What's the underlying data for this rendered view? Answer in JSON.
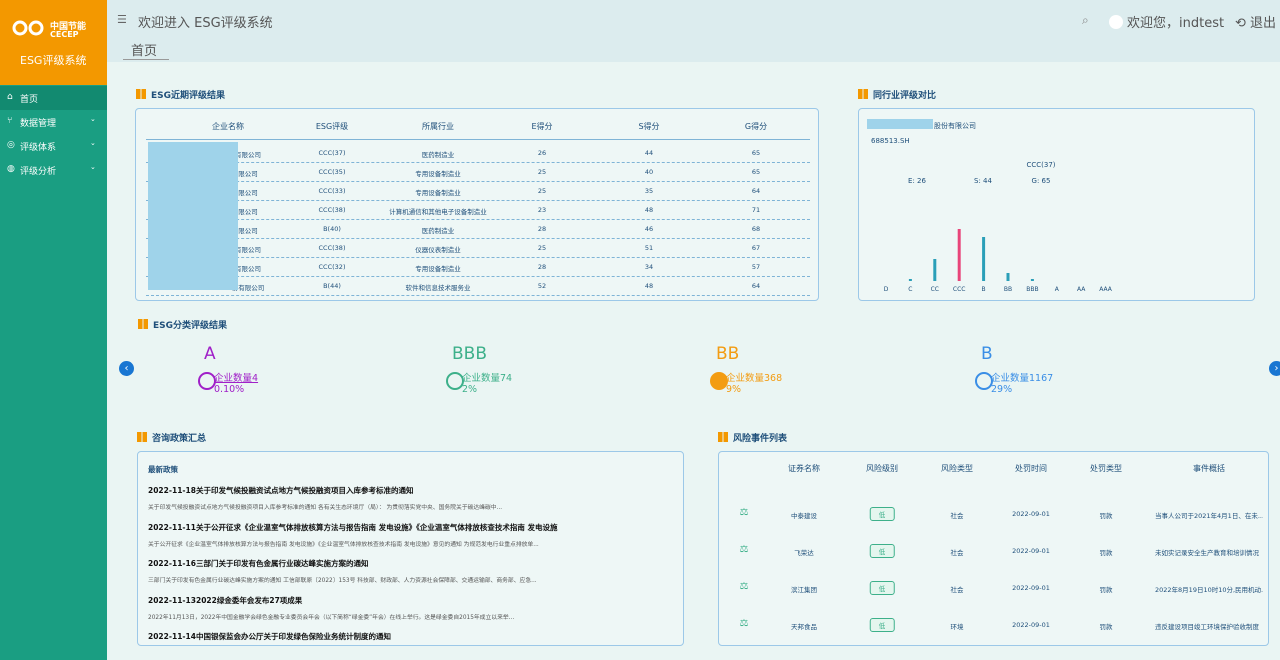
{
  "sidebar": {
    "logo_cn": "中国节能",
    "logo_en": "CECEP",
    "system_name": "ESG评级系统",
    "menu": [
      "首页",
      "数据管理",
      "评级体系",
      "评级分析"
    ]
  },
  "header": {
    "title": "欢迎进入 ESG评级系统",
    "welcome": "欢迎您，indtest",
    "logout": "退出",
    "tab": "首页"
  },
  "recent": {
    "title": "ESG近期评级结果",
    "columns": [
      "企业名称",
      "ESG评级",
      "所属行业",
      "E得分",
      "S得分",
      "G得分"
    ],
    "rows": [
      [
        "有限公司",
        "CCC(37)",
        "医药制造业",
        "26",
        "44",
        "65"
      ],
      [
        "限公司",
        "CCC(35)",
        "专用设备制造业",
        "25",
        "40",
        "65"
      ],
      [
        "限公司",
        "CCC(33)",
        "专用设备制造业",
        "25",
        "35",
        "64"
      ],
      [
        "限公司",
        "CCC(38)",
        "计算机通信和其他电子设备制造业",
        "23",
        "48",
        "71"
      ],
      [
        "限公司",
        "B(40)",
        "医药制造业",
        "28",
        "46",
        "68"
      ],
      [
        "有限公司",
        "CCC(38)",
        "仪器仪表制造业",
        "25",
        "51",
        "67"
      ],
      [
        "有限公司",
        "CCC(32)",
        "专用设备制造业",
        "28",
        "34",
        "57"
      ],
      [
        "份有限公司",
        "B(44)",
        "软件和信息技术服务业",
        "52",
        "48",
        "64"
      ]
    ]
  },
  "peer": {
    "title": "同行业评级对比",
    "company": "股份有限公司",
    "code": "688513.SH",
    "rating": "CCC(37)",
    "scores": [
      "E: 26",
      "S: 44",
      "G: 65"
    ],
    "chart": {
      "type": "bar",
      "categories": [
        "D",
        "C",
        "CC",
        "CCC",
        "B",
        "BB",
        "BBB",
        "A",
        "AA",
        "AAA"
      ],
      "values": [
        0,
        1,
        11,
        26,
        22,
        4,
        1,
        0,
        0,
        0
      ],
      "colors": [
        "#2a9fb8",
        "#2a9fb8",
        "#2a9fb8",
        "#e8457a",
        "#2a9fb8",
        "#2a9fb8",
        "#2a9fb8",
        "#2a9fb8",
        "#2a9fb8",
        "#2a9fb8"
      ]
    }
  },
  "classification": {
    "title": "ESG分类评级结果",
    "count_label": "企业数量",
    "items": [
      {
        "grade": "A",
        "count": "4",
        "share": "0.10%",
        "color": "#a020c8"
      },
      {
        "grade": "BBB",
        "count": "74",
        "share": "2%",
        "color": "#3db08a"
      },
      {
        "grade": "BB",
        "count": "368",
        "share": "9%",
        "color": "#f39c12"
      },
      {
        "grade": "B",
        "count": "1167",
        "share": "29%",
        "color": "#3a8ee6"
      }
    ]
  },
  "policy": {
    "title": "咨询政策汇总",
    "subtitle": "最新政策",
    "items": [
      {
        "heading": "2022-11-18关于印发气候投融资试点地方气候投融资项目入库参考标准的通知",
        "snippet": "关于印发气候投融资试点地方气候投融资项目入库参考标准的通知  各有关生态环境厅（局）：      为贯彻落实党中央、国务院关于碳达峰碳中..."
      },
      {
        "heading": "2022-11-11关于公开征求《企业温室气体排放核算方法与报告指南 发电设施》《企业温室气体排放核查技术指南 发电设施",
        "snippet": "关于公开征求《企业温室气体排放核算方法与报告指南 发电设施》《企业温室气体排放核查技术指南 发电设施》意见的通知      为规范发电行业重点排放单..."
      },
      {
        "heading": "2022-11-16三部门关于印发有色金属行业碳达峰实施方案的通知",
        "snippet": "三部门关于印发有色金属行业碳达峰实施方案的通知 工信部联原〔2022〕153号  科技部、财政部、人力资源社会保障部、交通运输部、商务部、应急..."
      },
      {
        "heading": "2022-11-132022绿金委年会发布27项成果",
        "snippet": "2022年11月13日，2022年中国金融学会绿色金融专业委员会年会（以下简称“绿金委”年会）在线上举行。这是绿金委自2015年成立以来举..."
      },
      {
        "heading": "2022-11-14中国银保监会办公厅关于印发绿色保险业务统计制度的通知"
      }
    ]
  },
  "risk": {
    "title": "风险事件列表",
    "columns": [
      "证券名称",
      "风险级别",
      "风险类型",
      "处罚时间",
      "处罚类型",
      "事件概括"
    ],
    "rows": [
      [
        "中泰建设",
        "低",
        "社会",
        "2022-09-01",
        "罚款",
        "当事人公司于2021年4月1日、在未..."
      ],
      [
        "飞荣达",
        "低",
        "社会",
        "2022-09-01",
        "罚款",
        "未如实记录安全生产教育和培训情况"
      ],
      [
        "滨江集团",
        "低",
        "社会",
        "2022-09-01",
        "罚款",
        "2022年8月19日10时10分,民用机动..."
      ],
      [
        "天邦食品",
        "低",
        "环境",
        "2022-09-01",
        "罚款",
        "违反建设项目竣工环境保护验收制度"
      ]
    ]
  }
}
